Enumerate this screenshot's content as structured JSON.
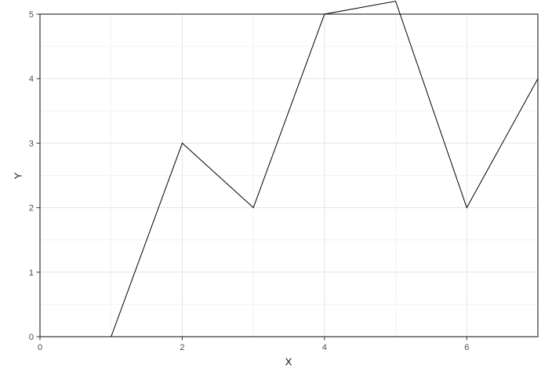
{
  "chart_data": {
    "type": "line",
    "xlabel": "X",
    "ylabel": "Y",
    "x": [
      1,
      2,
      3,
      4,
      5,
      6,
      7
    ],
    "y": [
      0,
      3,
      2,
      5,
      5.2,
      2,
      4
    ],
    "xlim": [
      0,
      7
    ],
    "ylim": [
      0,
      5
    ],
    "x_major_ticks": [
      0,
      2,
      4,
      6
    ],
    "x_minor_ticks": [
      1,
      3,
      5,
      7
    ],
    "y_major_ticks": [
      0,
      1,
      2,
      3,
      4,
      5
    ],
    "y_minor_ticks": [
      0.5,
      1.5,
      2.5,
      3.5,
      4.5
    ],
    "grid": "on",
    "legend": "none",
    "colors": {
      "line": "#000000",
      "panel_border": "#333333",
      "tick_mark": "#333333",
      "grid_major": "#e5e5e5",
      "grid_minor": "#f2f2f2",
      "tick_label": "#4d4d4d",
      "axis_title": "#111111",
      "background": "#ffffff"
    }
  }
}
